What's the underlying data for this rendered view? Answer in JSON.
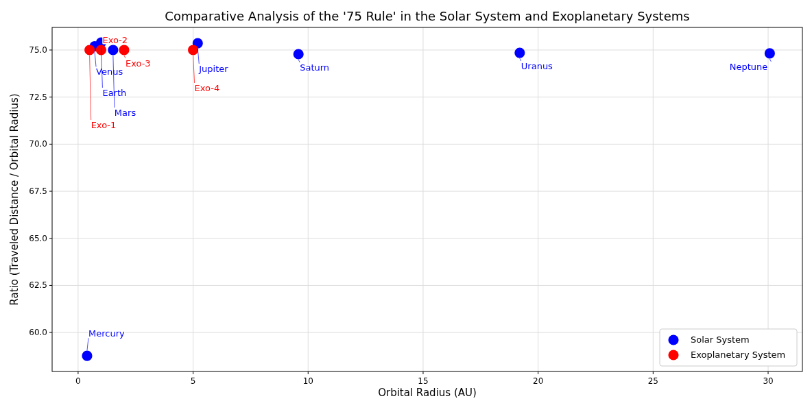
{
  "chart_data": {
    "type": "scatter",
    "title": "Comparative Analysis of the '75 Rule' in the Solar System and Exoplanetary Systems",
    "xlabel": "Orbital Radius (AU)",
    "ylabel": "Ratio (Traveled Distance / Orbital Radius)",
    "series": [
      {
        "name": "Solar System",
        "color": "#0000ff",
        "x": [
          0.39,
          0.72,
          1.0,
          1.52,
          5.2,
          9.58,
          19.2,
          30.07
        ],
        "values": [
          58.76,
          75.2,
          75.4,
          75.0,
          75.36,
          74.78,
          74.85,
          74.82
        ]
      },
      {
        "name": "Exoplanetary System",
        "color": "#ff0000",
        "x": [
          0.5,
          1.0,
          2.0,
          5.0
        ],
        "values": [
          75.0,
          75.0,
          75.0,
          75.0
        ]
      }
    ],
    "annotations": [
      {
        "text": "Mercury",
        "x": 0.39,
        "y": 58.76
      },
      {
        "text": "Venus",
        "x": 0.72,
        "y": 75.2
      },
      {
        "text": "Earth",
        "x": 1.0,
        "y": 75.4
      },
      {
        "text": "Mars",
        "x": 1.52,
        "y": 75.0
      },
      {
        "text": "Jupiter",
        "x": 5.2,
        "y": 75.36
      },
      {
        "text": "Saturn",
        "x": 9.58,
        "y": 74.78
      },
      {
        "text": "Uranus",
        "x": 19.2,
        "y": 74.85
      },
      {
        "text": "Neptune",
        "x": 30.07,
        "y": 74.82
      },
      {
        "text": "Exo-1",
        "x": 0.5,
        "y": 75.0
      },
      {
        "text": "Exo-2",
        "x": 1.0,
        "y": 75.0
      },
      {
        "text": "Exo-3",
        "x": 2.0,
        "y": 75.0
      },
      {
        "text": "Exo-4",
        "x": 5.0,
        "y": 75.0
      }
    ],
    "xlim": [
      -1.13,
      31.49
    ],
    "xticks": [
      0,
      5,
      10,
      15,
      20,
      25,
      30
    ],
    "ylim": [
      57.93,
      76.2
    ],
    "yticks": [
      {
        "value": 60,
        "label": "60.0"
      },
      {
        "value": 62.5,
        "label": "62.5"
      },
      {
        "value": 65,
        "label": "65.0"
      },
      {
        "value": 67.5,
        "label": "67.5"
      },
      {
        "value": 70,
        "label": "70.0"
      },
      {
        "value": 72.5,
        "label": "72.5"
      },
      {
        "value": 75,
        "label": "75.0"
      }
    ],
    "grid": true,
    "legend": "bottom right",
    "marker": "circle"
  }
}
